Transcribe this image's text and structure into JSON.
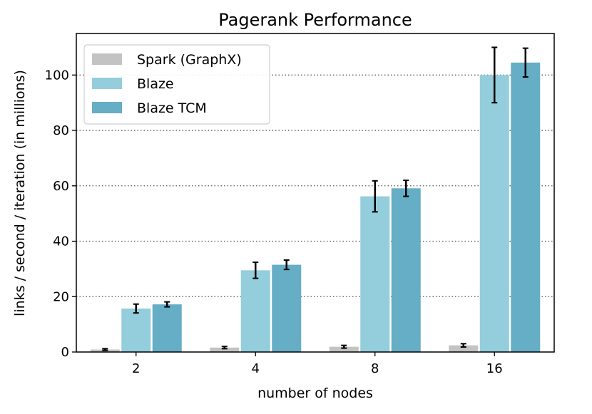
{
  "chart_data": {
    "type": "bar",
    "title": "Pagerank Performance",
    "xlabel": "number of nodes",
    "ylabel": "links / second / iteration (in millions)",
    "categories": [
      "2",
      "4",
      "8",
      "16"
    ],
    "ylim": [
      0,
      115
    ],
    "yticks": [
      0,
      20,
      40,
      60,
      80,
      100
    ],
    "grid": "y-dotted",
    "legend_position": "top-left",
    "series": [
      {
        "name": "Spark (GraphX)",
        "color": "#c3c3c3",
        "values": [
          0.9,
          1.6,
          1.9,
          2.4
        ],
        "errors": [
          0.3,
          0.4,
          0.5,
          0.6
        ]
      },
      {
        "name": "Blaze",
        "color": "#94cddc",
        "values": [
          15.7,
          29.5,
          56.2,
          100.0
        ],
        "errors": [
          1.6,
          2.9,
          5.6,
          10.0
        ]
      },
      {
        "name": "Blaze TCM",
        "color": "#66adc6",
        "values": [
          17.2,
          31.5,
          59.1,
          104.5
        ],
        "errors": [
          0.9,
          1.7,
          2.9,
          5.2
        ]
      }
    ]
  }
}
